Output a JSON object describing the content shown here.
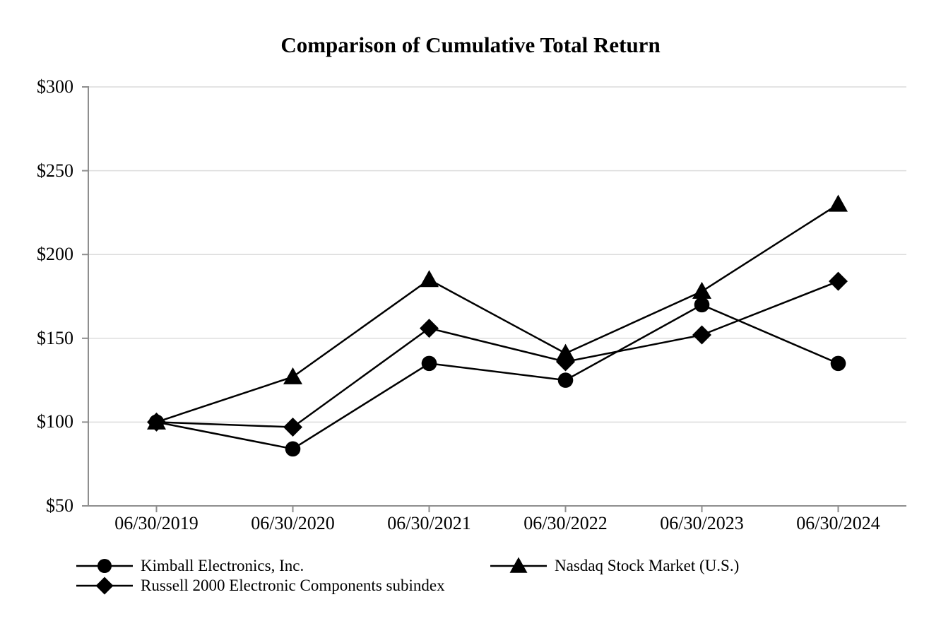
{
  "title": "Comparison of Cumulative Total Return",
  "chart_data": {
    "type": "line",
    "title": "Comparison of Cumulative Total Return",
    "xlabel": "",
    "ylabel": "",
    "categories": [
      "06/30/2019",
      "06/30/2020",
      "06/30/2021",
      "06/30/2022",
      "06/30/2023",
      "06/30/2024"
    ],
    "series": [
      {
        "name": "Kimball Electronics, Inc.",
        "marker": "circle",
        "color": "#000000",
        "values": [
          100,
          84,
          135,
          125,
          170,
          135
        ]
      },
      {
        "name": "Nasdaq Stock Market (U.S.)",
        "marker": "triangle",
        "color": "#000000",
        "values": [
          100,
          127,
          185,
          141,
          178,
          230
        ]
      },
      {
        "name": "Russell 2000 Electronic Components subindex",
        "marker": "diamond",
        "color": "#000000",
        "values": [
          100,
          97,
          156,
          136,
          152,
          184
        ]
      }
    ],
    "ylim": [
      50,
      300
    ],
    "y_tick_step": 50,
    "y_tick_labels": [
      "$300",
      "$250",
      "$200",
      "$150",
      "$100",
      "$50"
    ],
    "y_tick_values": [
      300,
      250,
      200,
      150,
      100,
      50
    ],
    "grid": true,
    "legend_position": "bottom",
    "colors": {
      "grid": "#dcdcdc",
      "axis": "#8e8e8e",
      "series": "#000000",
      "background": "#ffffff"
    }
  },
  "legend": {
    "items": [
      {
        "label": "Kimball Electronics, Inc.",
        "marker": "circle"
      },
      {
        "label": "Nasdaq Stock Market (U.S.)",
        "marker": "triangle"
      },
      {
        "label": "Russell 2000 Electronic Components subindex",
        "marker": "diamond"
      }
    ]
  }
}
